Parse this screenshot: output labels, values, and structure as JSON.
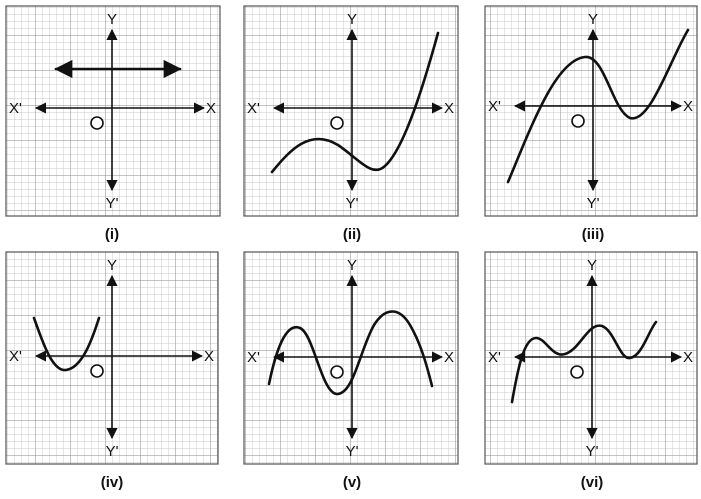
{
  "figure": {
    "axis_labels": {
      "x_pos": "X",
      "x_neg": "X'",
      "y_pos": "Y",
      "y_neg": "Y'",
      "origin": "O"
    },
    "panels": [
      {
        "id": "i",
        "caption": "(i)",
        "curve": "horizontal-line-with-arrows"
      },
      {
        "id": "ii",
        "caption": "(ii)",
        "curve": "cubic-rising"
      },
      {
        "id": "iii",
        "caption": "(iii)",
        "curve": "cubic-peak-valley"
      },
      {
        "id": "iv",
        "caption": "(iv)",
        "curve": "parabola-left"
      },
      {
        "id": "v",
        "caption": "(v)",
        "curve": "two-peaks"
      },
      {
        "id": "vi",
        "caption": "(vi)",
        "curve": "wavy-rising"
      }
    ]
  }
}
